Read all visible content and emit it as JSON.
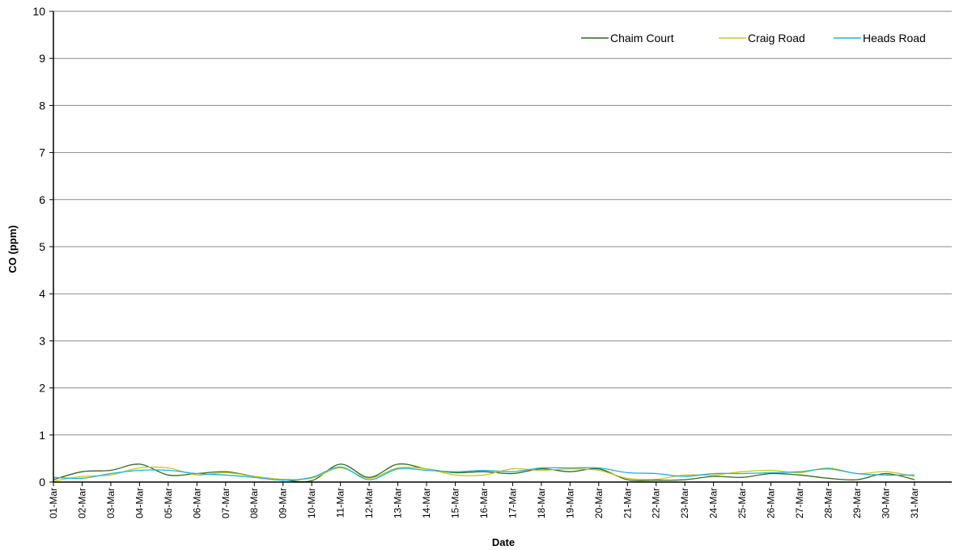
{
  "chart_data": {
    "type": "line",
    "title": "",
    "xlabel": "Date",
    "ylabel": "CO (ppm)",
    "ylim": [
      0,
      10
    ],
    "yticks": [
      "0",
      "1",
      "2",
      "3",
      "4",
      "5",
      "6",
      "7",
      "8",
      "9",
      "10"
    ],
    "x": [
      "01-Mar",
      "02-Mar",
      "03-Mar",
      "04-Mar",
      "05-Mar",
      "06-Mar",
      "07-Mar",
      "08-Mar",
      "09-Mar",
      "10-Mar",
      "11-Mar",
      "12-Mar",
      "13-Mar",
      "14-Mar",
      "15-Mar",
      "16-Mar",
      "17-Mar",
      "18-Mar",
      "19-Mar",
      "20-Mar",
      "21-Mar",
      "22-Mar",
      "23-Mar",
      "24-Mar",
      "25-Mar",
      "26-Mar",
      "27-Mar",
      "28-Mar",
      "29-Mar",
      "30-Mar",
      "31-Mar"
    ],
    "grid": "horizontal",
    "legend_position": "top-right",
    "series": [
      {
        "name": "Chaim Court",
        "color": "#2e6b1e",
        "values": [
          0.05,
          0.22,
          0.25,
          0.38,
          0.15,
          0.18,
          0.22,
          0.12,
          0.05,
          0.03,
          0.38,
          0.1,
          0.38,
          0.28,
          0.2,
          0.22,
          0.18,
          0.28,
          0.22,
          0.28,
          0.05,
          0.04,
          0.05,
          0.12,
          0.1,
          0.18,
          0.15,
          0.08,
          0.05,
          0.18,
          0.05
        ]
      },
      {
        "name": "Craig Road",
        "color": "#c8c820",
        "values": [
          0.02,
          0.12,
          0.15,
          0.3,
          0.3,
          0.15,
          0.2,
          0.12,
          0.06,
          0.08,
          0.3,
          0.08,
          0.3,
          0.28,
          0.15,
          0.15,
          0.28,
          0.25,
          0.28,
          0.25,
          0.08,
          0.06,
          0.15,
          0.15,
          0.22,
          0.25,
          0.2,
          0.3,
          0.18,
          0.22,
          0.12
        ]
      },
      {
        "name": "Heads Road",
        "color": "#1fb0e0",
        "values": [
          0.1,
          0.08,
          0.18,
          0.25,
          0.25,
          0.18,
          0.15,
          0.1,
          0.04,
          0.1,
          0.32,
          0.05,
          0.28,
          0.25,
          0.22,
          0.25,
          0.22,
          0.3,
          0.3,
          0.3,
          0.2,
          0.18,
          0.12,
          0.18,
          0.18,
          0.2,
          0.22,
          0.28,
          0.18,
          0.15,
          0.15
        ]
      }
    ]
  }
}
